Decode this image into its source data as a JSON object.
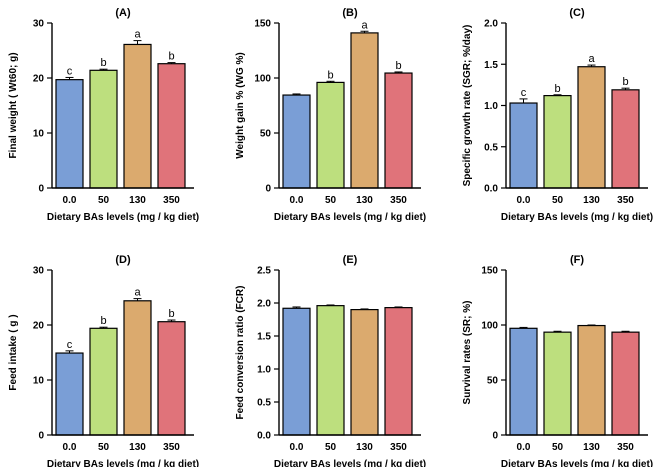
{
  "figure": {
    "colors": [
      "#7a9ed6",
      "#bddf7e",
      "#dbaa6e",
      "#e0737a"
    ]
  },
  "chart_data": [
    {
      "type": "bar",
      "panel": "(A)",
      "title": "(A)",
      "xlabel": "Dietary BAs levels (mg / kg diet)",
      "ylabel": "Final weight ( Wt60; g)",
      "categories": [
        "0.0",
        "50",
        "130",
        "350"
      ],
      "values": [
        19.7,
        21.4,
        26.1,
        22.6
      ],
      "errors": [
        0.4,
        0.2,
        0.7,
        0.2
      ],
      "letters": [
        "c",
        "b",
        "a",
        "b"
      ],
      "ylim": [
        0,
        30
      ],
      "yticks": [
        0,
        10,
        20,
        30
      ],
      "ytick_labels": [
        "0",
        "10",
        "20",
        "30"
      ]
    },
    {
      "type": "bar",
      "panel": "(B)",
      "title": "(B)",
      "xlabel": "Dietary BAs levels (mg / kg diet)",
      "ylabel": "Weight gain % (WG %)",
      "categories": [
        "0.0",
        "50",
        "130",
        "350"
      ],
      "values": [
        84.5,
        96,
        141,
        104.5
      ],
      "errors": [
        1.0,
        1.0,
        1.5,
        1.0
      ],
      "letters": [
        "",
        "b",
        "a",
        "b"
      ],
      "ylim": [
        0,
        150
      ],
      "yticks": [
        0,
        50,
        100,
        150
      ],
      "ytick_labels": [
        "0",
        "50",
        "100",
        "150"
      ]
    },
    {
      "type": "bar",
      "panel": "(C)",
      "title": "(C)",
      "xlabel": "Dietary BAs levels (mg / kg diet)",
      "ylabel": "Specific growth rate (SGR; %/day)",
      "categories": [
        "0.0",
        "50",
        "130",
        "350"
      ],
      "values": [
        1.03,
        1.12,
        1.47,
        1.19
      ],
      "errors": [
        0.05,
        0.01,
        0.02,
        0.02
      ],
      "letters": [
        "c",
        "b",
        "a",
        "b"
      ],
      "ylim": [
        0,
        2.0
      ],
      "yticks": [
        0,
        0.5,
        1.0,
        1.5,
        2.0
      ],
      "ytick_labels": [
        "0.0",
        "0.5",
        "1.0",
        "1.5",
        "2.0"
      ]
    },
    {
      "type": "bar",
      "panel": "(D)",
      "title": "(D)",
      "xlabel": "Dietary BAs levels (mg / kg diet)",
      "ylabel": "Feed intake ( g )",
      "categories": [
        "0.0",
        "50",
        "130",
        "350"
      ],
      "values": [
        14.9,
        19.4,
        24.4,
        20.6
      ],
      "errors": [
        0.4,
        0.2,
        0.4,
        0.3
      ],
      "letters": [
        "c",
        "b",
        "a",
        "b"
      ],
      "ylim": [
        0,
        30
      ],
      "yticks": [
        0,
        10,
        20,
        30
      ],
      "ytick_labels": [
        "0",
        "10",
        "20",
        "30"
      ]
    },
    {
      "type": "bar",
      "panel": "(E)",
      "title": "(E)",
      "xlabel": "Dietary BAs levels (mg / kg diet)",
      "ylabel": "Feed conversion ratio (FCR)",
      "categories": [
        "0.0",
        "50",
        "130",
        "350"
      ],
      "values": [
        1.92,
        1.96,
        1.9,
        1.93
      ],
      "errors": [
        0.02,
        0.01,
        0.01,
        0.01
      ],
      "letters": [
        "",
        "",
        "",
        ""
      ],
      "ylim": [
        0,
        2.5
      ],
      "yticks": [
        0,
        0.5,
        1.0,
        1.5,
        2.0,
        2.5
      ],
      "ytick_labels": [
        "0.0",
        "0.5",
        "1.0",
        "1.5",
        "2.0",
        "2.5"
      ]
    },
    {
      "type": "bar",
      "panel": "(F)",
      "title": "(F)",
      "xlabel": "Dietary BAs levels (mg / kg diet)",
      "ylabel": "Survival rates (SR; %)",
      "categories": [
        "0.0",
        "50",
        "130",
        "350"
      ],
      "values": [
        97,
        93.5,
        99.5,
        93.5
      ],
      "errors": [
        0.8,
        0.8,
        0.5,
        0.8
      ],
      "letters": [
        "",
        "",
        "",
        ""
      ],
      "ylim": [
        0,
        150
      ],
      "yticks": [
        0,
        50,
        100,
        150
      ],
      "ytick_labels": [
        "0",
        "50",
        "100",
        "150"
      ]
    }
  ]
}
